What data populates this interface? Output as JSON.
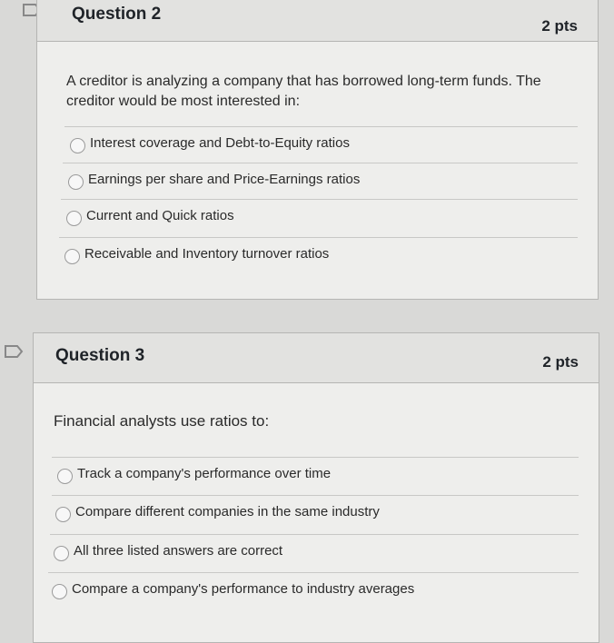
{
  "questions": [
    {
      "title": "Question 2",
      "points": "2 pts",
      "prompt": "A creditor is analyzing a company that has borrowed long-term funds. The creditor would be most interested in:",
      "answers": [
        "Interest coverage and Debt-to-Equity ratios",
        "Earnings per share and Price-Earnings ratios",
        "Current and Quick ratios",
        "Receivable and Inventory turnover ratios"
      ]
    },
    {
      "title": "Question 3",
      "points": "2 pts",
      "prompt": "Financial analysts use ratios to:",
      "answers": [
        "Track a company's performance over time",
        "Compare different companies in the same industry",
        "All three listed answers are correct",
        "Compare a company's performance to industry averages"
      ]
    }
  ]
}
